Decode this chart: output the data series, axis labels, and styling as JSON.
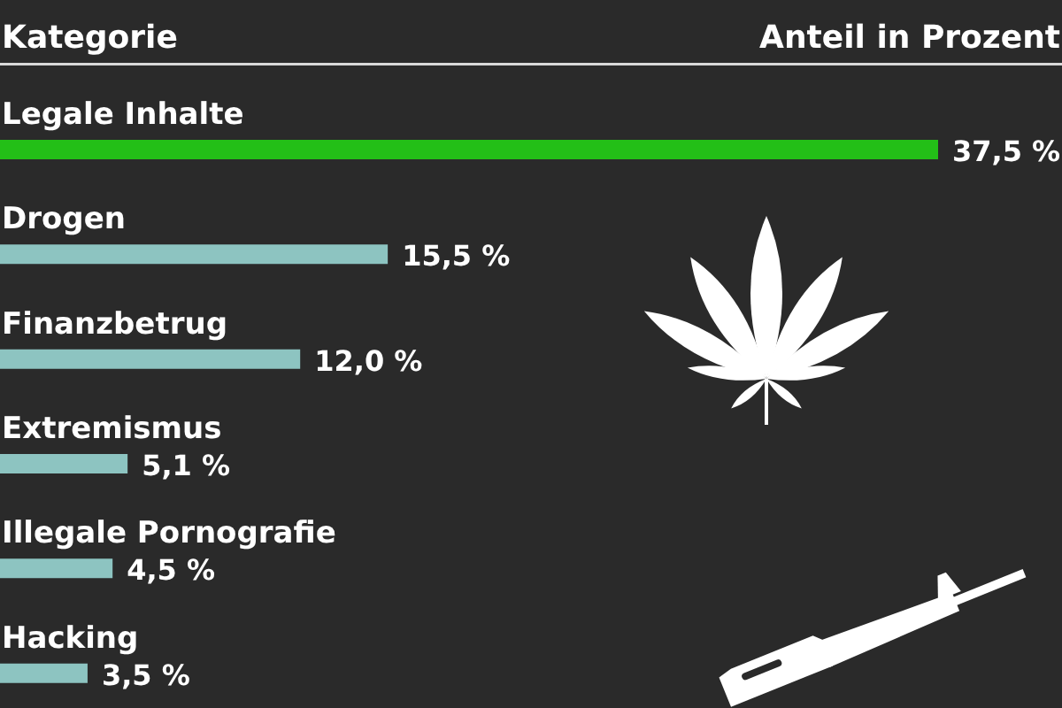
{
  "chart_data": {
    "type": "bar",
    "orientation": "horizontal",
    "ylabel": "Kategorie",
    "xlabel": "Anteil in Prozent",
    "categories": [
      "Legale Inhalte",
      "Drogen",
      "Finanzbetrug",
      "Extremismus",
      "Illegale Pornografie",
      "Hacking"
    ],
    "values": [
      37.5,
      15.5,
      12.0,
      5.1,
      4.5,
      3.5
    ],
    "colors": [
      "#23bf17",
      "#8dc4c1",
      "#8dc4c1",
      "#8dc4c1",
      "#8dc4c1",
      "#8dc4c1"
    ],
    "value_labels": [
      "37,5 %",
      "15,5 %",
      "12,0 %",
      "5,1 %",
      "4,5 %",
      "3,5 %"
    ]
  }
}
